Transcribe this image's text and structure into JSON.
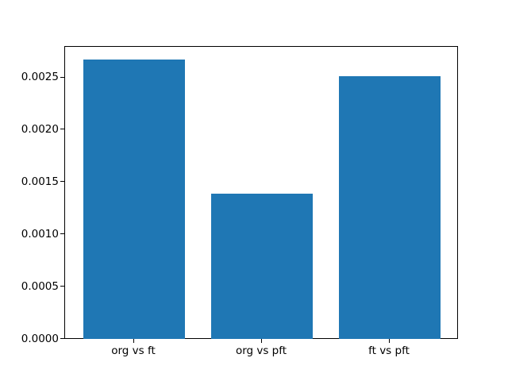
{
  "chart_data": {
    "type": "bar",
    "categories": [
      "org vs ft",
      "org vs pft",
      "ft vs pft"
    ],
    "values": [
      0.00267,
      0.00139,
      0.00251
    ],
    "title": "",
    "xlabel": "",
    "ylabel": "",
    "xlim": [
      -0.54,
      2.54
    ],
    "ylim": [
      0,
      0.0028
    ],
    "bar_width": 0.8,
    "bar_color": "#1f77b4",
    "yticks": [
      0.0,
      0.0005,
      0.001,
      0.0015,
      0.002,
      0.0025
    ],
    "ytick_labels": [
      "0.0000",
      "0.0005",
      "0.0010",
      "0.0015",
      "0.0020",
      "0.0025"
    ],
    "grid": false,
    "legend": null,
    "spine_color": "#000000",
    "background_color": "#ffffff"
  }
}
